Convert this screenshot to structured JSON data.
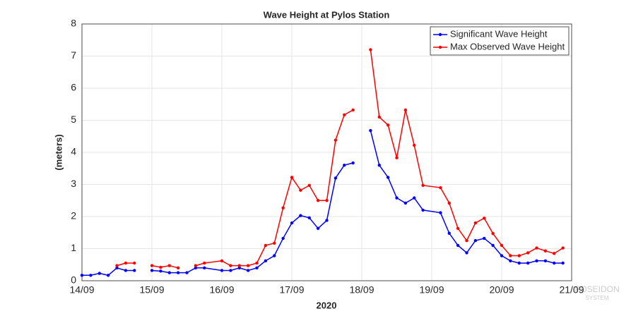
{
  "chart_data": {
    "type": "line",
    "title": "Wave Height at Pylos Station",
    "x_label": "2020",
    "y_label": "(meters)",
    "x": [
      0,
      0.125,
      0.25,
      0.375,
      0.5,
      0.625,
      0.75,
      0.875,
      1,
      1.125,
      1.25,
      1.375,
      1.5,
      1.625,
      1.75,
      2,
      2.125,
      2.25,
      2.375,
      2.5,
      2.625,
      2.75,
      2.875,
      3,
      3.125,
      3.25,
      3.375,
      3.5,
      3.625,
      3.75,
      3.875,
      4,
      4.125,
      4.25,
      4.375,
      4.5,
      4.625,
      4.75,
      4.875,
      5.125,
      5.25,
      5.375,
      5.5,
      5.625,
      5.75,
      5.875,
      6,
      6.125,
      6.25,
      6.375,
      6.5,
      6.625,
      6.75,
      6.875
    ],
    "series": [
      {
        "name": "Significant Wave Height",
        "color": "#0000ff",
        "values": [
          0.17,
          0.17,
          0.23,
          0.17,
          0.4,
          0.32,
          0.32,
          null,
          0.32,
          0.3,
          0.25,
          0.25,
          0.25,
          0.4,
          0.4,
          0.32,
          0.32,
          0.4,
          0.32,
          0.4,
          0.62,
          0.78,
          1.32,
          1.8,
          2.03,
          1.96,
          1.63,
          1.88,
          3.2,
          3.6,
          3.67,
          null,
          4.68,
          3.6,
          3.22,
          2.58,
          2.42,
          2.58,
          2.2,
          2.12,
          1.48,
          1.1,
          0.87,
          1.25,
          1.32,
          1.1,
          0.78,
          0.62,
          0.55,
          0.55,
          0.62,
          0.62,
          0.55,
          0.55
        ]
      },
      {
        "name": "Max Observed Wave Height",
        "color": "#ff0000",
        "values": [
          null,
          null,
          null,
          null,
          0.47,
          0.55,
          0.55,
          null,
          0.47,
          0.42,
          0.47,
          0.4,
          null,
          0.47,
          0.55,
          0.62,
          0.47,
          0.47,
          0.47,
          0.55,
          1.1,
          1.17,
          2.27,
          3.22,
          2.82,
          2.97,
          2.5,
          2.5,
          4.38,
          5.17,
          5.32,
          null,
          7.2,
          5.1,
          4.85,
          3.83,
          5.32,
          4.22,
          2.97,
          2.9,
          2.42,
          1.63,
          1.25,
          1.8,
          1.95,
          1.47,
          1.1,
          0.78,
          0.78,
          0.87,
          1.02,
          0.93,
          0.85,
          1.02
        ]
      }
    ],
    "xlim": [
      0,
      7
    ],
    "xticks": [
      {
        "value": 0,
        "label": "14/09"
      },
      {
        "value": 1,
        "label": "15/09"
      },
      {
        "value": 2,
        "label": "16/09"
      },
      {
        "value": 3,
        "label": "17/09"
      },
      {
        "value": 4,
        "label": "18/09"
      },
      {
        "value": 5,
        "label": "19/09"
      },
      {
        "value": 6,
        "label": "20/09"
      },
      {
        "value": 7,
        "label": "21/09"
      }
    ],
    "ylim": [
      0,
      8
    ],
    "yticks": [
      0,
      1,
      2,
      3,
      4,
      5,
      6,
      7,
      8
    ],
    "grid": true,
    "legend": "top-right",
    "watermark": [
      "POSEIDON",
      "SYSTEM"
    ]
  }
}
